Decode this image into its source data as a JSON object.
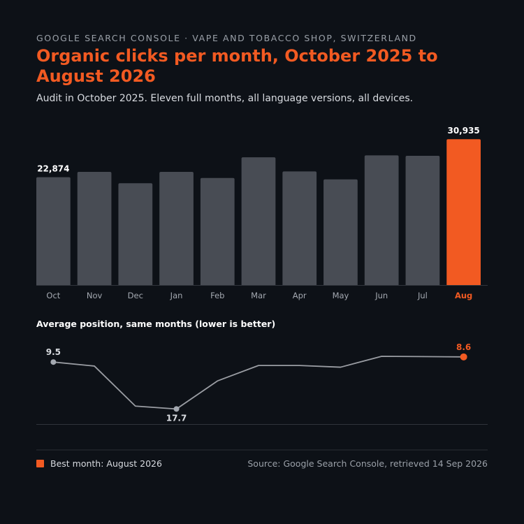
{
  "header": {
    "eyebrow": "GOOGLE SEARCH CONSOLE · VAPE AND TOBACCO SHOP, SWITZERLAND",
    "title": "Organic clicks per month, October 2025 to August 2026",
    "subtitle": "Audit in October 2025. Eleven full months, all language versions, all devices."
  },
  "colors": {
    "background": "#0d1117",
    "bar": "#484c54",
    "highlight": "#f25a22",
    "line": "#9a9da3",
    "grid": "#30343b"
  },
  "chart_data": [
    {
      "type": "bar",
      "title": "",
      "categories": [
        "Oct",
        "Nov",
        "Dec",
        "Jan",
        "Feb",
        "Mar",
        "Apr",
        "May",
        "Jun",
        "Jul",
        "Aug"
      ],
      "values": [
        22874,
        24000,
        21600,
        24000,
        22700,
        27100,
        24100,
        22400,
        27500,
        27400,
        30935
      ],
      "labeled": {
        "0": "22,874",
        "10": "30,935"
      },
      "highlight_index": 10,
      "ylim": [
        0,
        32000
      ],
      "xlabel": "",
      "ylabel": ""
    },
    {
      "type": "line",
      "title": "Average position, same months (lower is better)",
      "categories": [
        "Oct",
        "Nov",
        "Dec",
        "Jan",
        "Feb",
        "Mar",
        "Apr",
        "May",
        "Jun",
        "Jul",
        "Aug"
      ],
      "values": [
        9.5,
        10.2,
        17.2,
        17.7,
        12.8,
        10.1,
        10.1,
        10.4,
        8.5,
        8.55,
        8.6
      ],
      "labeled": {
        "0": "9.5",
        "3": "17.7",
        "10": "8.6"
      },
      "highlight_index": 10,
      "inverted_axis": true,
      "ylim": [
        8.5,
        19.0
      ]
    }
  ],
  "footer": {
    "legend_label": "Best month: August 2026",
    "source": "Source: Google Search Console, retrieved 14 Sep 2026"
  }
}
